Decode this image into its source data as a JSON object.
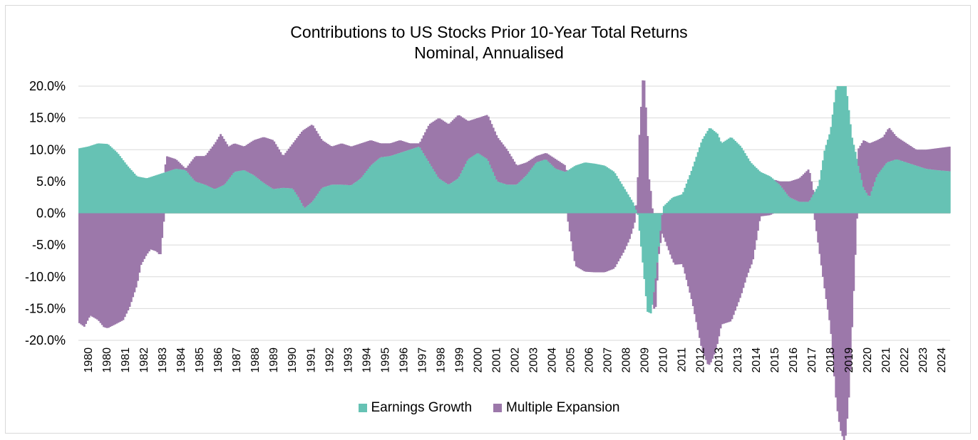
{
  "chart_data": {
    "type": "bar",
    "stacked": true,
    "title": "Contributions to US Stocks Prior 10-Year Total Returns",
    "subtitle": "Nominal, Annualised",
    "ylim": [
      -20,
      20
    ],
    "y_ticks": [
      "20.0%",
      "15.0%",
      "10.0%",
      "5.0%",
      "0.0%",
      "-5.0%",
      "-10.0%",
      "-15.0%",
      "-20.0%"
    ],
    "y_tick_values": [
      20,
      15,
      10,
      5,
      0,
      -5,
      -10,
      -15,
      -20
    ],
    "x_tick_labels": [
      "1980",
      "1980",
      "1981",
      "1982",
      "1983",
      "1984",
      "1985",
      "1986",
      "1987",
      "1988",
      "1989",
      "1990",
      "1991",
      "1992",
      "1993",
      "1994",
      "1995",
      "1996",
      "1997",
      "1998",
      "1999",
      "2000",
      "2001",
      "2002",
      "2003",
      "2004",
      "2005",
      "2006",
      "2007",
      "2008",
      "2009",
      "2010",
      "2011",
      "2012",
      "2013",
      "2013",
      "2014",
      "2015",
      "2016",
      "2017",
      "2018",
      "2019",
      "2020",
      "2021",
      "2022",
      "2023",
      "2024"
    ],
    "x_range": [
      1980.0,
      2024.75
    ],
    "legend_position": "bottom",
    "series": [
      {
        "name": "Earnings Growth",
        "color": "#66c2b4",
        "knots_x": [
          1980.0,
          1980.5,
          1981.0,
          1981.5,
          1982.0,
          1982.5,
          1983.0,
          1983.5,
          1984.0,
          1984.5,
          1985.0,
          1985.5,
          1986.0,
          1986.5,
          1987.0,
          1987.5,
          1988.0,
          1988.5,
          1989.0,
          1989.5,
          1990.0,
          1990.5,
          1991.0,
          1991.3,
          1991.6,
          1992.0,
          1992.5,
          1993.0,
          1993.5,
          1994.0,
          1994.5,
          1995.0,
          1995.5,
          1996.0,
          1996.5,
          1997.0,
          1997.5,
          1998.0,
          1998.5,
          1999.0,
          1999.5,
          2000.0,
          2000.5,
          2001.0,
          2001.5,
          2002.0,
          2002.5,
          2003.0,
          2003.5,
          2004.0,
          2004.5,
          2005.0,
          2005.5,
          2006.0,
          2006.5,
          2007.0,
          2007.5,
          2008.0,
          2008.3,
          2008.5,
          2008.7,
          2009.0,
          2009.2,
          2009.4,
          2009.6,
          2009.8,
          2010.0,
          2010.5,
          2011.0,
          2011.5,
          2012.0,
          2012.4,
          2012.8,
          2013.0,
          2013.5,
          2014.0,
          2014.5,
          2015.0,
          2015.5,
          2016.0,
          2016.5,
          2017.0,
          2017.5,
          2018.0,
          2018.3,
          2018.6,
          2018.9,
          2019.2,
          2019.4,
          2019.7,
          2020.0,
          2020.3,
          2020.6,
          2021.0,
          2021.5,
          2022.0,
          2022.5,
          2023.0,
          2023.5,
          2024.0,
          2024.75
        ],
        "knots_y": [
          10.2,
          10.5,
          11.0,
          10.9,
          9.5,
          7.5,
          5.8,
          5.5,
          6.0,
          6.5,
          7.0,
          6.8,
          5.0,
          4.5,
          3.8,
          4.5,
          6.5,
          6.8,
          6.0,
          4.8,
          3.8,
          4.0,
          3.9,
          2.5,
          0.8,
          1.8,
          4.0,
          4.5,
          4.5,
          4.4,
          5.5,
          7.5,
          8.8,
          9.0,
          9.5,
          10.0,
          10.5,
          8.0,
          5.5,
          4.5,
          5.5,
          8.5,
          9.5,
          8.5,
          5.0,
          4.5,
          4.5,
          6.0,
          8.0,
          8.5,
          7.0,
          6.5,
          7.5,
          8.0,
          7.8,
          7.5,
          6.5,
          4.0,
          2.5,
          1.5,
          0.0,
          -9.0,
          -15.5,
          -15.8,
          -11.0,
          -5.0,
          1.0,
          2.5,
          3.0,
          7.0,
          11.5,
          13.5,
          12.5,
          11.0,
          12.0,
          10.5,
          8.0,
          6.5,
          5.8,
          4.5,
          2.5,
          1.8,
          1.8,
          4.5,
          10.0,
          13.0,
          20.0,
          20.0,
          20.0,
          12.0,
          8.0,
          4.0,
          2.5,
          6.0,
          8.0,
          8.5,
          8.0,
          7.5,
          7.0,
          6.8,
          6.6
        ]
      },
      {
        "name": "Multiple Expansion",
        "color": "#9c78aa",
        "knots_x": [
          1980.0,
          1980.3,
          1980.6,
          1981.0,
          1981.3,
          1981.6,
          1982.0,
          1982.3,
          1982.6,
          1983.0,
          1983.2,
          1983.5,
          1983.7,
          1984.0,
          1984.2,
          1984.5,
          1985.0,
          1985.5,
          1986.0,
          1986.5,
          1987.0,
          1987.3,
          1987.7,
          1988.0,
          1988.5,
          1989.0,
          1989.5,
          1990.0,
          1990.5,
          1991.0,
          1991.5,
          1992.0,
          1992.5,
          1993.0,
          1993.5,
          1994.0,
          1994.5,
          1995.0,
          1995.5,
          1996.0,
          1996.5,
          1997.0,
          1997.5,
          1998.0,
          1998.5,
          1999.0,
          1999.5,
          2000.0,
          2000.5,
          2001.0,
          2001.5,
          2002.0,
          2002.5,
          2003.0,
          2003.5,
          2004.0,
          2004.5,
          2005.0,
          2005.5,
          2006.0,
          2006.5,
          2007.0,
          2007.5,
          2008.0,
          2008.3,
          2008.6,
          2008.8,
          2009.0,
          2009.3,
          2009.6,
          2009.8,
          2010.0,
          2010.3,
          2010.6,
          2011.0,
          2011.5,
          2012.0,
          2012.3,
          2012.6,
          2013.0,
          2013.5,
          2014.0,
          2014.3,
          2014.6,
          2015.0,
          2015.5,
          2016.0,
          2016.5,
          2017.0,
          2017.5,
          2018.0,
          2018.3,
          2018.6,
          2018.9,
          2019.1,
          2019.3,
          2019.6,
          2020.0,
          2020.3,
          2020.6,
          2021.0,
          2021.3,
          2021.6,
          2022.0,
          2022.5,
          2023.0,
          2023.5,
          2024.0,
          2024.75
        ],
        "knots_total": [
          -7.0,
          -7.5,
          -5.5,
          -5.8,
          -7.0,
          -7.3,
          -7.8,
          -8.5,
          -7.8,
          -5.5,
          -2.5,
          -1.0,
          0.0,
          0.0,
          -0.5,
          9.0,
          8.5,
          7.0,
          9.0,
          9.0,
          11.0,
          12.5,
          10.5,
          11.0,
          10.5,
          11.5,
          12.0,
          11.5,
          9.0,
          11.0,
          13.0,
          14.0,
          11.5,
          10.5,
          11.0,
          10.5,
          11.0,
          11.5,
          11.0,
          11.0,
          11.5,
          11.0,
          11.0,
          14.0,
          15.0,
          14.0,
          15.5,
          14.5,
          15.0,
          15.5,
          12.0,
          10.0,
          7.5,
          8.0,
          9.0,
          9.5,
          8.5,
          7.5,
          -0.8,
          -1.2,
          -1.5,
          -1.8,
          -2.2,
          -2.0,
          -1.5,
          0.0,
          10.0,
          14.0,
          -11.0,
          -16.0,
          -6.0,
          -2.5,
          -4.0,
          -5.5,
          -5.0,
          -7.0,
          -10.0,
          -10.8,
          -9.5,
          -6.5,
          -5.0,
          -2.5,
          -1.0,
          0.0,
          6.0,
          5.5,
          5.0,
          5.0,
          5.5,
          7.0,
          -1.0,
          -2.0,
          -5.0,
          -10.0,
          -14.0,
          -16.0,
          -12.0,
          10.0,
          11.5,
          11.0,
          11.5,
          12.0,
          13.5,
          12.0,
          11.0,
          10.0,
          10.0,
          10.2,
          10.5
        ]
      }
    ]
  }
}
